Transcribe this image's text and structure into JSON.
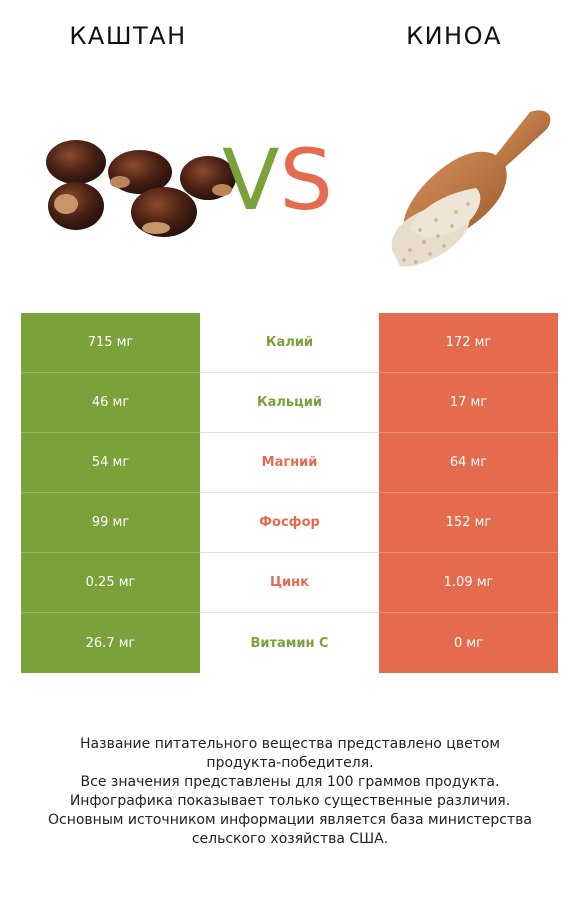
{
  "header": {
    "left_title": "КАШТАН",
    "right_title": "КИНОА",
    "vs_v": "V",
    "vs_s": "S",
    "left_color": "#7ba23a",
    "right_color": "#e46b4d"
  },
  "illustrations": {
    "left": "chestnuts-image",
    "right": "quinoa-scoop-image"
  },
  "rows": [
    {
      "nutrient": "Калий",
      "left": "715 мг",
      "right": "172 мг",
      "winner": "left"
    },
    {
      "nutrient": "Кальций",
      "left": "46 мг",
      "right": "17 мг",
      "winner": "left"
    },
    {
      "nutrient": "Магний",
      "left": "54 мг",
      "right": "64 мг",
      "winner": "right"
    },
    {
      "nutrient": "Фосфор",
      "left": "99 мг",
      "right": "152 мг",
      "winner": "right"
    },
    {
      "nutrient": "Цинк",
      "left": "0.25 мг",
      "right": "1.09 мг",
      "winner": "right"
    },
    {
      "nutrient": "Витамин C",
      "left": "26.7 мг",
      "right": "0 мг",
      "winner": "left"
    }
  ],
  "footnote": {
    "line1": "Название питательного вещества представлено цветом",
    "line2": "продукта-победителя.",
    "line3": "Все значения представлены для 100 граммов продукта.",
    "line4": "Инфографика показывает только существенные различия.",
    "line5": "Основным источником информации является база министерства",
    "line6": "сельского хозяйства США."
  }
}
